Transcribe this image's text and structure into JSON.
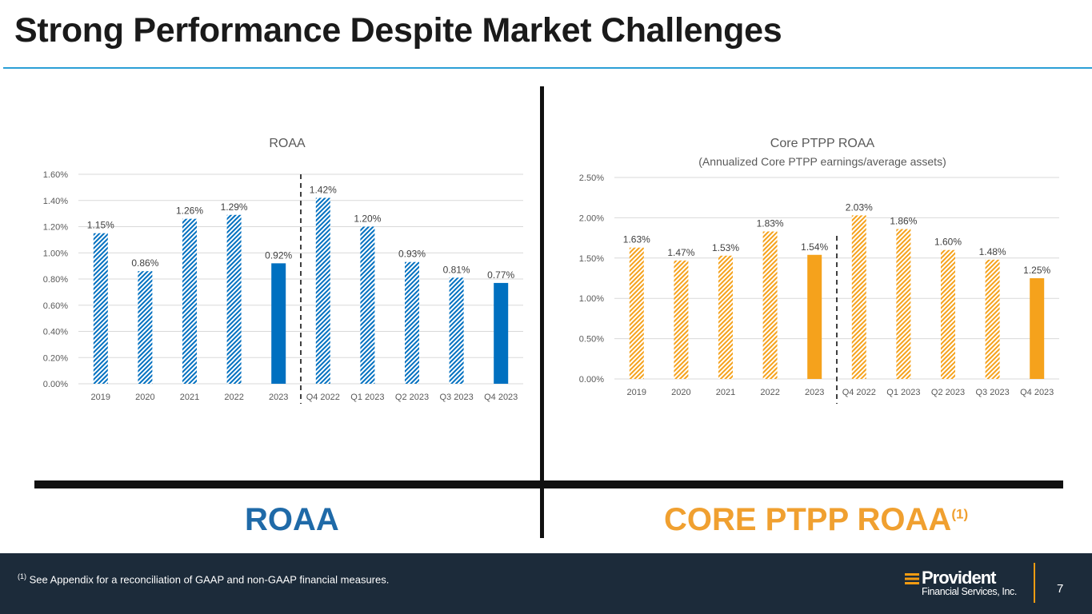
{
  "title": "Strong Performance Despite Market Challenges",
  "colors": {
    "roaa": "#0070c0",
    "roaa_label": "#1f6aa8",
    "ptpp": "#f5a21c",
    "ptpp_label": "#f0a030",
    "rule": "#2b9fd6",
    "footer": "#1c2b3a"
  },
  "labels": {
    "roaa": "ROAA",
    "ptpp": "CORE PTPP ROAA",
    "ptpp_sup": "(1)"
  },
  "footer": {
    "footnote_sup": "(1)",
    "footnote": " See Appendix for a reconciliation of GAAP and non-GAAP financial measures.",
    "logo_brand": "Provident",
    "logo_sub": "Financial Services, Inc.",
    "page_number": "7"
  },
  "chart_data": [
    {
      "type": "bar",
      "title": "ROAA",
      "subtitle": "",
      "categories": [
        "2019",
        "2020",
        "2021",
        "2022",
        "2023",
        "Q4 2022",
        "Q1 2023",
        "Q2 2023",
        "Q3 2023",
        "Q4 2023"
      ],
      "values": [
        1.15,
        0.86,
        1.26,
        1.29,
        0.92,
        1.42,
        1.2,
        0.93,
        0.81,
        0.77
      ],
      "data_labels": [
        "1.15%",
        "0.86%",
        "1.26%",
        "1.29%",
        "0.92%",
        "1.42%",
        "1.20%",
        "0.93%",
        "0.81%",
        "0.77%"
      ],
      "bar_style": [
        "hatched",
        "hatched",
        "hatched",
        "hatched",
        "solid",
        "hatched",
        "hatched",
        "hatched",
        "hatched",
        "solid"
      ],
      "ylim": [
        0,
        1.6
      ],
      "yticks": [
        0,
        0.2,
        0.4,
        0.6,
        0.8,
        1.0,
        1.2,
        1.4,
        1.6
      ],
      "ytick_labels": [
        "0.00%",
        "0.20%",
        "0.40%",
        "0.60%",
        "0.80%",
        "1.00%",
        "1.20%",
        "1.40%",
        "1.60%"
      ],
      "divider_after_index": 4,
      "grid": true,
      "xlabel": "",
      "ylabel": ""
    },
    {
      "type": "bar",
      "title": "Core PTPP ROAA",
      "subtitle": "(Annualized Core PTPP earnings/average assets)",
      "categories": [
        "2019",
        "2020",
        "2021",
        "2022",
        "2023",
        "Q4 2022",
        "Q1 2023",
        "Q2 2023",
        "Q3 2023",
        "Q4 2023"
      ],
      "values": [
        1.63,
        1.47,
        1.53,
        1.83,
        1.54,
        2.03,
        1.86,
        1.6,
        1.48,
        1.25
      ],
      "data_labels": [
        "1.63%",
        "1.47%",
        "1.53%",
        "1.83%",
        "1.54%",
        "2.03%",
        "1.86%",
        "1.60%",
        "1.48%",
        "1.25%"
      ],
      "bar_style": [
        "hatched",
        "hatched",
        "hatched",
        "hatched",
        "solid",
        "hatched",
        "hatched",
        "hatched",
        "hatched",
        "solid"
      ],
      "ylim": [
        0,
        2.5
      ],
      "yticks": [
        0,
        0.5,
        1.0,
        1.5,
        2.0,
        2.5
      ],
      "ytick_labels": [
        "0.00%",
        "0.50%",
        "1.00%",
        "1.50%",
        "2.00%",
        "2.50%"
      ],
      "divider_after_index": 4,
      "grid": true,
      "xlabel": "",
      "ylabel": ""
    }
  ]
}
